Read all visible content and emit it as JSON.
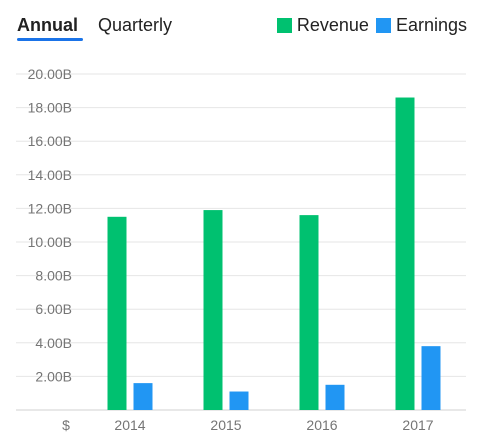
{
  "tabs": {
    "annual": "Annual",
    "quarterly": "Quarterly"
  },
  "legend": {
    "revenue": "Revenue",
    "earnings": "Earnings"
  },
  "colors": {
    "revenue": "#00c170",
    "earnings": "#2196f3",
    "accent": "#1a73e8"
  },
  "currency_label": "$",
  "chart_data": {
    "type": "bar",
    "categories": [
      "2014",
      "2015",
      "2016",
      "2017"
    ],
    "series": [
      {
        "name": "Revenue",
        "values": [
          11.5,
          11.9,
          11.6,
          18.6
        ]
      },
      {
        "name": "Earnings",
        "values": [
          1.6,
          1.1,
          1.5,
          3.8
        ]
      }
    ],
    "ylim": [
      0,
      20
    ],
    "yticks": [
      2,
      4,
      6,
      8,
      10,
      12,
      14,
      16,
      18,
      20
    ],
    "ytick_labels": [
      "2.00B",
      "4.00B",
      "6.00B",
      "8.00B",
      "10.00B",
      "12.00B",
      "14.00B",
      "16.00B",
      "18.00B",
      "20.00B"
    ],
    "grid": true,
    "legend_position": "top-right"
  }
}
